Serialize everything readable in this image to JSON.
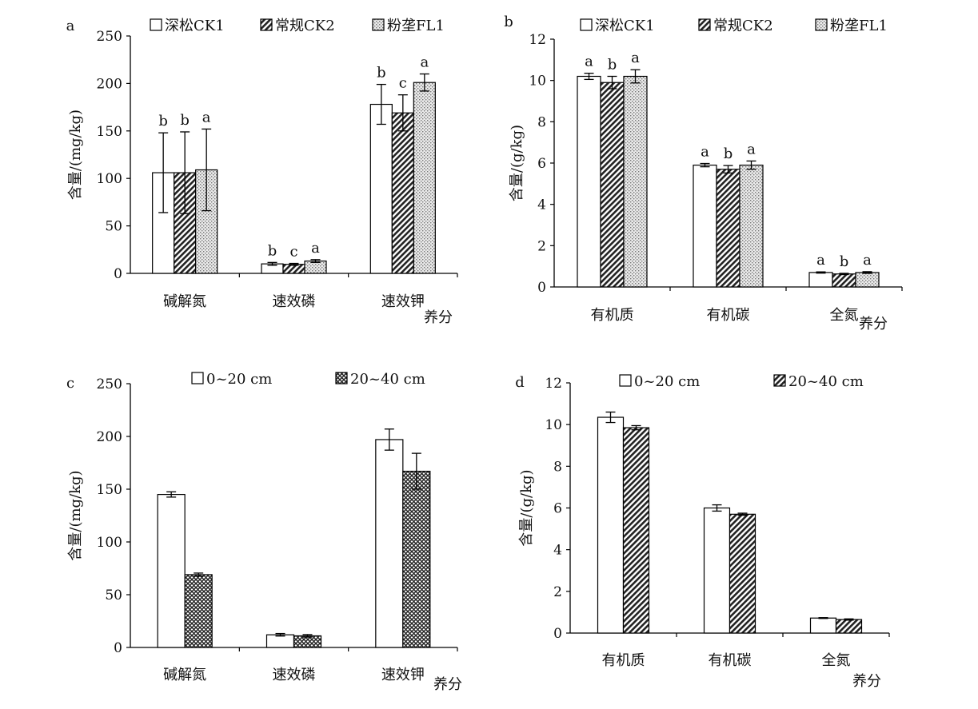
{
  "chart_data": [
    {
      "panel_label": "a",
      "type": "bar",
      "ylabel": "含量/(mg/kg)",
      "xlabel": "养分",
      "ylim": [
        0,
        250
      ],
      "yticks": [
        0,
        50,
        100,
        150,
        200,
        250
      ],
      "categories": [
        "碱解氮",
        "速效磷",
        "速效钾"
      ],
      "legend_position": "top",
      "series": [
        {
          "name": "深松CK1",
          "pattern": "plain",
          "values": [
            106,
            10,
            178
          ],
          "errors": [
            42,
            1.5,
            21
          ],
          "labels": [
            "b",
            "b",
            "b"
          ]
        },
        {
          "name": "常规CK2",
          "pattern": "diagonal",
          "values": [
            106,
            9.5,
            169
          ],
          "errors": [
            43,
            1,
            19
          ],
          "labels": [
            "b",
            "c",
            "c"
          ]
        },
        {
          "name": "粉垄FL1",
          "pattern": "dots",
          "values": [
            109,
            13,
            201
          ],
          "errors": [
            43,
            1.5,
            9
          ],
          "labels": [
            "a",
            "a",
            "a"
          ]
        }
      ]
    },
    {
      "panel_label": "b",
      "type": "bar",
      "ylabel": "含量/(g/kg)",
      "xlabel": "养分",
      "ylim": [
        0,
        12
      ],
      "yticks": [
        0,
        2,
        4,
        6,
        8,
        10,
        12
      ],
      "categories": [
        "有机质",
        "有机碳",
        "全氮"
      ],
      "legend_position": "top",
      "series": [
        {
          "name": "深松CK1",
          "pattern": "plain",
          "values": [
            10.2,
            5.9,
            0.7
          ],
          "errors": [
            0.15,
            0.08,
            0.03
          ],
          "labels": [
            "a",
            "a",
            "a"
          ]
        },
        {
          "name": "常规CK2",
          "pattern": "diagonal",
          "values": [
            9.9,
            5.7,
            0.63
          ],
          "errors": [
            0.3,
            0.18,
            0.03
          ],
          "labels": [
            "b",
            "b",
            "b"
          ]
        },
        {
          "name": "粉垄FL1",
          "pattern": "dots",
          "values": [
            10.2,
            5.9,
            0.7
          ],
          "errors": [
            0.32,
            0.2,
            0.04
          ],
          "labels": [
            "a",
            "a",
            "a"
          ]
        }
      ]
    },
    {
      "panel_label": "c",
      "type": "bar",
      "ylabel": "含量/(mg/kg)",
      "xlabel": "养分",
      "ylim": [
        0,
        250
      ],
      "yticks": [
        0,
        50,
        100,
        150,
        200,
        250
      ],
      "categories": [
        "碱解氮",
        "速效磷",
        "速效钾"
      ],
      "legend_position": "top",
      "series": [
        {
          "name": "0~20 cm",
          "pattern": "plain",
          "values": [
            145,
            12,
            197
          ],
          "errors": [
            2.5,
            1.2,
            10
          ],
          "labels": [
            "",
            "",
            ""
          ]
        },
        {
          "name": "20~40 cm",
          "pattern": "cross",
          "values": [
            69,
            11,
            167
          ],
          "errors": [
            1.5,
            1.2,
            17
          ],
          "labels": [
            "",
            "",
            ""
          ]
        }
      ]
    },
    {
      "panel_label": "d",
      "type": "bar",
      "ylabel": "含量/(g/kg)",
      "xlabel": "养分",
      "ylim": [
        0,
        12
      ],
      "yticks": [
        0,
        2,
        4,
        6,
        8,
        10,
        12
      ],
      "categories": [
        "有机质",
        "有机碳",
        "全氮"
      ],
      "legend_position": "top",
      "series": [
        {
          "name": "0~20 cm",
          "pattern": "plain",
          "values": [
            10.35,
            6.0,
            0.72
          ],
          "errors": [
            0.25,
            0.15,
            0.02
          ],
          "labels": [
            "",
            "",
            ""
          ]
        },
        {
          "name": "20~40 cm",
          "pattern": "diagonal",
          "values": [
            9.85,
            5.7,
            0.65
          ],
          "errors": [
            0.1,
            0.05,
            0.03
          ],
          "labels": [
            "",
            "",
            ""
          ]
        }
      ]
    }
  ]
}
